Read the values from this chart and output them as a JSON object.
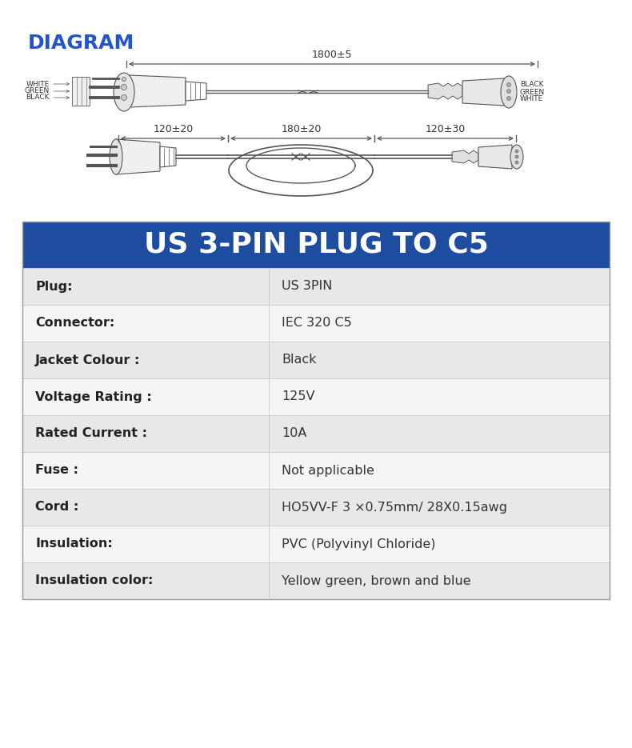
{
  "title": "DIAGRAM",
  "title_color": "#2255CC",
  "title_fontsize": 18,
  "bg_color": "#FFFFFF",
  "diagram_label_1800": "1800±5",
  "diagram_label_120_20": "120±20",
  "diagram_label_180_20": "180±20",
  "diagram_label_120_30": "120±30",
  "left_labels": [
    "BLACK",
    "GREEN",
    "WHITE"
  ],
  "right_labels": [
    "WHITE",
    "GREEN",
    "BLACK"
  ],
  "table_title": "US 3-PIN PLUG TO C5",
  "table_title_bg": "#1E4DA0",
  "table_title_color": "#FFFFFF",
  "table_title_fontsize": 26,
  "table_rows": [
    [
      "Plug:",
      "US 3PIN"
    ],
    [
      "Connector:",
      "IEC 320 C5"
    ],
    [
      "Jacket Colour :",
      "Black"
    ],
    [
      "Voltage Rating :",
      "125V"
    ],
    [
      "Rated Current :",
      "10A"
    ],
    [
      "Fuse :",
      "Not applicable"
    ],
    [
      "Cord :",
      "HO5VV-F 3 ×0.75mm/ 28X0.15awg"
    ],
    [
      "Insulation:",
      "PVC (Polyvinyl Chloride)"
    ],
    [
      "Insulation color:",
      "Yellow green, brown and blue"
    ]
  ],
  "row_bg_odd": "#E8E8E8",
  "row_bg_even": "#F5F5F5",
  "row_border_color": "#CCCCCC",
  "table_border_color": "#999999",
  "diagram_line_color": "#555555",
  "col_split": 0.42
}
